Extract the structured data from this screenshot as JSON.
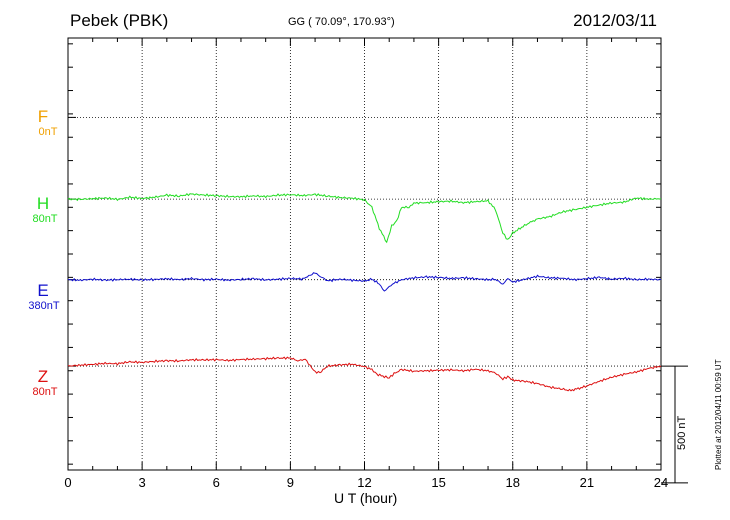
{
  "header": {
    "station": "Pebek (PBK)",
    "coords": "GG ( 70.09°, 170.93°)",
    "date": "2012/03/11"
  },
  "footer": "Plotted at 2012/04/11 00:59 UT",
  "scale_label": "500 nT",
  "colors": {
    "F": "#f0a000",
    "H": "#22dd22",
    "E": "#1010cc",
    "Z": "#dd1010"
  },
  "chart_data": {
    "type": "line",
    "title": "Pebek (PBK)",
    "xlabel": "U T (hour)",
    "ylabel": "",
    "xlim": [
      0,
      24
    ],
    "xticks": [
      "0",
      "3",
      "6",
      "9",
      "12",
      "15",
      "18",
      "21",
      "24"
    ],
    "ylim_nT": [
      -425,
      1425
    ],
    "scale_bar_nT": 500,
    "channels": [
      {
        "name": "F",
        "scale": "0nT",
        "baseline_nT": 1085,
        "values": []
      },
      {
        "name": "H",
        "scale": "80nT",
        "baseline_nT": 735,
        "x": [
          0,
          0.5,
          1,
          1.5,
          2,
          2.5,
          3,
          3.5,
          4,
          4.5,
          5,
          5.5,
          6,
          6.5,
          7,
          7.5,
          8,
          8.5,
          9,
          9.5,
          10,
          10.5,
          11,
          11.5,
          12,
          12.3,
          12.6,
          12.9,
          13.1,
          13.3,
          13.5,
          13.8,
          14,
          14.5,
          15,
          15.5,
          16,
          16.5,
          17,
          17.3,
          17.6,
          17.8,
          18,
          18.3,
          18.6,
          19,
          19.5,
          20,
          20.5,
          21,
          21.5,
          22,
          22.5,
          23,
          23.5,
          24
        ],
        "values": [
          735,
          734,
          737,
          740,
          734,
          743,
          738,
          743,
          752,
          748,
          757,
          752,
          750,
          746,
          745,
          749,
          746,
          752,
          754,
          750,
          755,
          748,
          742,
          739,
          732,
          700,
          610,
          550,
          620,
          640,
          700,
          700,
          718,
          720,
          724,
          726,
          720,
          724,
          728,
          690,
          590,
          560,
          590,
          610,
          630,
          650,
          660,
          680,
          690,
          700,
          710,
          718,
          722,
          740,
          735,
          737
        ]
      },
      {
        "name": "E",
        "scale": "380nT",
        "baseline_nT": 390,
        "x": [
          0,
          0.5,
          1,
          1.5,
          2,
          2.5,
          3,
          3.5,
          4,
          4.5,
          5,
          5.5,
          6,
          6.5,
          7,
          7.5,
          8,
          8.5,
          9,
          9.5,
          10,
          10.2,
          10.5,
          11,
          11.5,
          12,
          12.3,
          12.6,
          12.8,
          13,
          13.2,
          13.5,
          14,
          14.5,
          15,
          15.5,
          16,
          16.5,
          17,
          17.3,
          17.6,
          17.8,
          18,
          18.5,
          19,
          19.5,
          20,
          20.5,
          21,
          21.5,
          22,
          22.5,
          23,
          23.5,
          24
        ],
        "values": [
          390,
          388,
          392,
          388,
          390,
          392,
          389,
          391,
          394,
          390,
          395,
          390,
          392,
          388,
          391,
          394,
          389,
          392,
          395,
          393,
          420,
          405,
          385,
          392,
          388,
          384,
          392,
          372,
          340,
          360,
          375,
          390,
          398,
          402,
          400,
          395,
          398,
          394,
          390,
          392,
          370,
          395,
          380,
          392,
          405,
          398,
          396,
          390,
          394,
          400,
          392,
          396,
          390,
          392,
          390
        ]
      },
      {
        "name": "Z",
        "scale": "80nT",
        "baseline_nT": 20,
        "x": [
          0,
          0.5,
          1,
          1.5,
          2,
          2.5,
          3,
          3.5,
          4,
          4.5,
          5,
          5.5,
          6,
          6.5,
          7,
          7.5,
          8,
          8.5,
          9,
          9.3,
          9.6,
          9.8,
          10,
          10.2,
          10.5,
          11,
          11.5,
          12,
          12.3,
          12.5,
          12.8,
          13,
          13.2,
          13.5,
          14,
          14.5,
          15,
          15.5,
          16,
          16.5,
          17,
          17.3,
          17.6,
          17.8,
          18,
          18.5,
          19,
          19.5,
          20,
          20.3,
          20.7,
          21,
          21.5,
          22,
          22.5,
          23,
          23.5,
          24
        ],
        "values": [
          20,
          24,
          27,
          32,
          30,
          38,
          36,
          40,
          43,
          42,
          47,
          46,
          48,
          44,
          48,
          50,
          52,
          54,
          55,
          42,
          50,
          22,
          -5,
          -8,
          20,
          25,
          28,
          18,
          5,
          -15,
          -25,
          -30,
          -12,
          5,
          -2,
          0,
          2,
          4,
          0,
          6,
          0,
          -10,
          -35,
          -25,
          -40,
          -45,
          -55,
          -70,
          -78,
          -85,
          -75,
          -65,
          -45,
          -28,
          -15,
          -5,
          10,
          20
        ]
      }
    ]
  }
}
